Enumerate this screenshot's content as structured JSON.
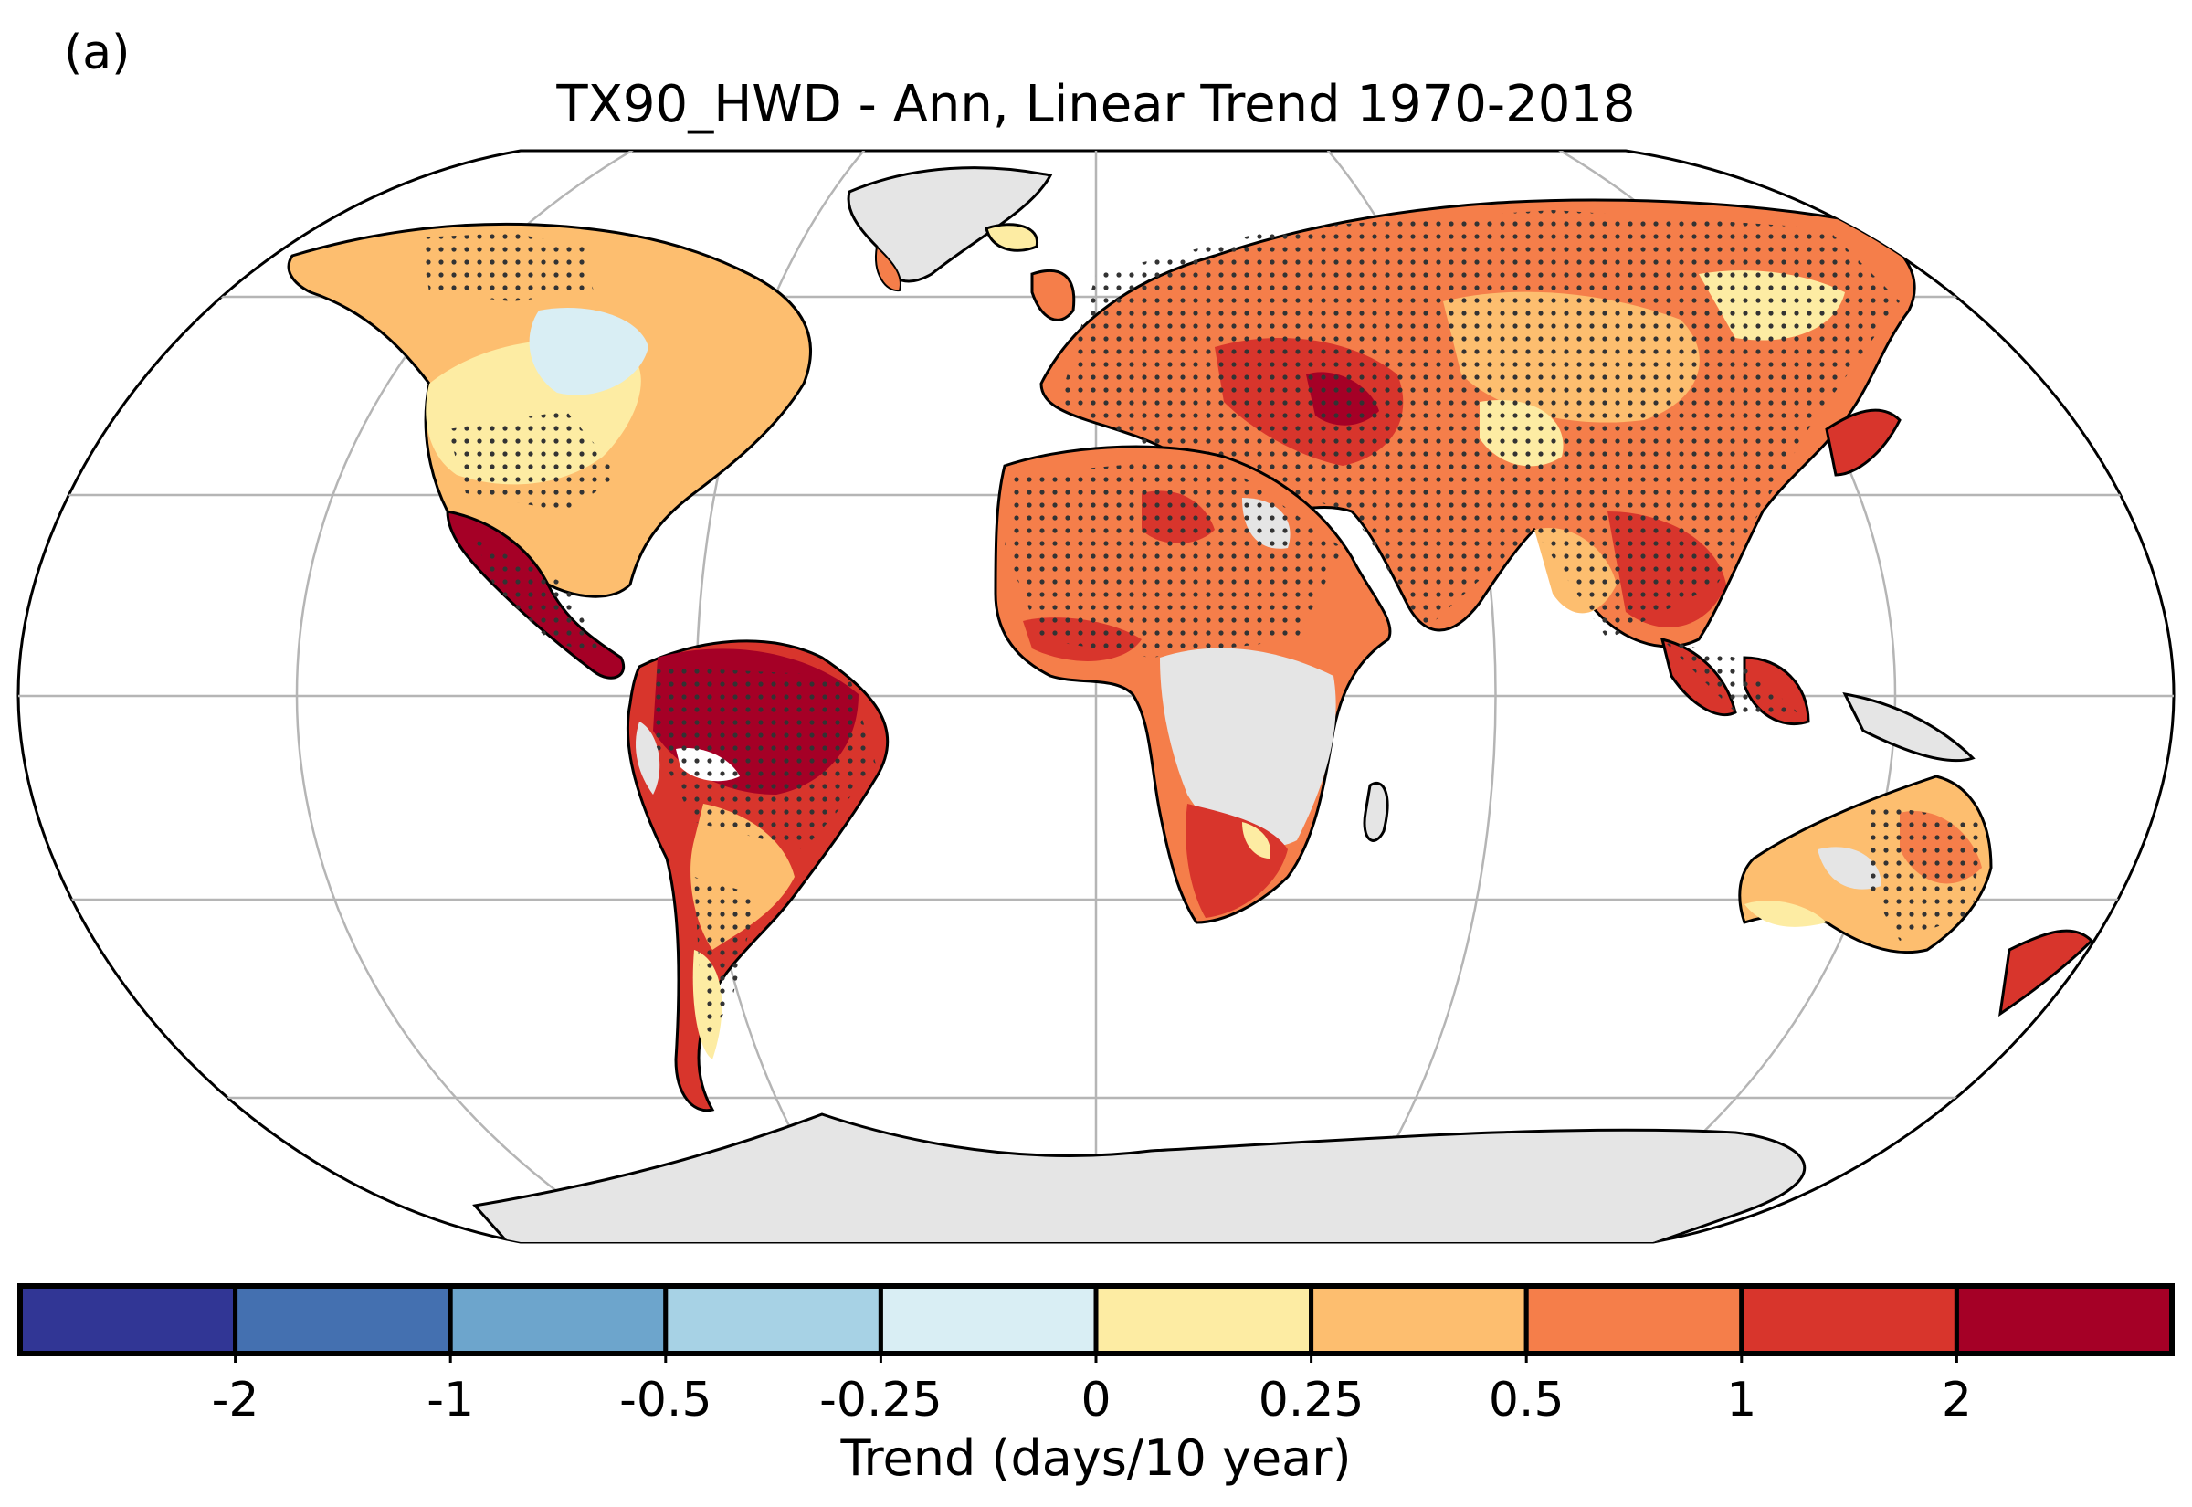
{
  "panel_label": "(a)",
  "title": "TX90_HWD - Ann, Linear Trend 1970-2018",
  "colorbar": {
    "title": "Trend (days/10 year)",
    "tick_labels": [
      "-2",
      "-1",
      "-0.5",
      "-0.25",
      "0",
      "0.25",
      "0.5",
      "1",
      "2"
    ],
    "colors": [
      "#313695",
      "#4470b0",
      "#6da5cc",
      "#a7d2e5",
      "#d9eef4",
      "#fdeca3",
      "#fdbe6f",
      "#f57e4a",
      "#d8352c",
      "#a50026"
    ]
  },
  "map_colors": {
    "no_data_land": "#e5e5e5",
    "ocean": "#ffffff",
    "gridline": "#b5b5b5",
    "coastline": "#000000",
    "significance_dot": "#333333"
  }
}
